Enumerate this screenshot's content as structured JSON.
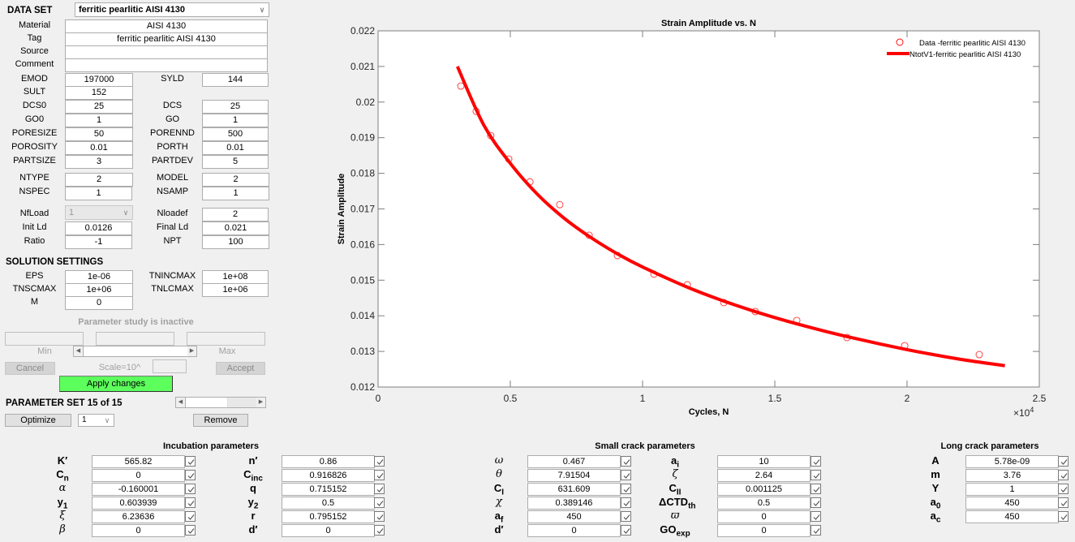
{
  "dataset": {
    "label": "DATA SET",
    "selected": "ferritic pearlitic AISI 4130",
    "material_label": "Material",
    "material": "AISI 4130",
    "tag_label": "Tag",
    "tag": "ferritic pearlitic AISI 4130",
    "source_label": "Source",
    "source": "",
    "comment_label": "Comment",
    "comment": ""
  },
  "props": {
    "EMOD": {
      "label": "EMOD",
      "value": "197000"
    },
    "SYLD": {
      "label": "SYLD",
      "value": "144"
    },
    "SULT": {
      "label": "SULT",
      "value": "152"
    },
    "DCS0": {
      "label": "DCS0",
      "value": "25"
    },
    "DCS": {
      "label": "DCS",
      "value": "25"
    },
    "GO0": {
      "label": "GO0",
      "value": "1"
    },
    "GO": {
      "label": "GO",
      "value": "1"
    },
    "PORESIZE": {
      "label": "PORESIZE",
      "value": "50"
    },
    "PORENND": {
      "label": "PORENND",
      "value": "500"
    },
    "POROSITY": {
      "label": "POROSITY",
      "value": "0.01"
    },
    "PORTH": {
      "label": "PORTH",
      "value": "0.01"
    },
    "PARTSIZE": {
      "label": "PARTSIZE",
      "value": "3"
    },
    "PARTDEV": {
      "label": "PARTDEV",
      "value": "5"
    },
    "NTYPE": {
      "label": "NTYPE",
      "value": "2"
    },
    "MODEL": {
      "label": "MODEL",
      "value": "2"
    },
    "NSPEC": {
      "label": "NSPEC",
      "value": "1"
    },
    "NSAMP": {
      "label": "NSAMP",
      "value": "1"
    },
    "NfLoad": {
      "label": "NfLoad",
      "value": "1"
    },
    "Nloadef": {
      "label": "Nloadef",
      "value": "2"
    },
    "InitLd": {
      "label": "Init Ld",
      "value": "0.0126"
    },
    "FinalLd": {
      "label": "Final Ld",
      "value": "0.021"
    },
    "Ratio": {
      "label": "Ratio",
      "value": "-1"
    },
    "NPT": {
      "label": "NPT",
      "value": "100"
    }
  },
  "solution": {
    "title": "SOLUTION SETTINGS",
    "EPS": {
      "label": "EPS",
      "value": "1e-06"
    },
    "TNINCMAX": {
      "label": "TNINCMAX",
      "value": "1e+08"
    },
    "TNSCMAX": {
      "label": "TNSCMAX",
      "value": "1e+06"
    },
    "TNLCMAX": {
      "label": "TNLCMAX",
      "value": "1e+06"
    },
    "M": {
      "label": "M",
      "value": "0"
    }
  },
  "study": {
    "status": "Parameter study is inactive",
    "min_label": "Min",
    "max_label": "Max",
    "cancel": "Cancel",
    "scale_label": "Scale=10^",
    "accept": "Accept",
    "apply": "Apply changes"
  },
  "paramset": {
    "label": "PARAMETER SET 15 of 15",
    "optimize": "Optimize",
    "select_value": "1",
    "remove": "Remove"
  },
  "incubation": {
    "title": "Incubation parameters",
    "left": [
      {
        "label": "K′",
        "value": "565.82",
        "checked": true
      },
      {
        "label": "C",
        "sub": "n",
        "value": "0",
        "checked": true
      },
      {
        "label": "α",
        "greek": true,
        "value": "-0.160001",
        "checked": true
      },
      {
        "label": "y",
        "sub": "1",
        "value": "0.603939",
        "checked": true
      },
      {
        "label": "ξ",
        "greek": true,
        "value": "6.23636",
        "checked": true
      },
      {
        "label": "β",
        "greek": true,
        "value": "0",
        "checked": true
      }
    ],
    "right": [
      {
        "label": "n′",
        "value": "0.86",
        "checked": true
      },
      {
        "label": "C",
        "sub": "inc",
        "value": "0.916826",
        "checked": true
      },
      {
        "label": "q",
        "value": "0.715152",
        "checked": true
      },
      {
        "label": "y",
        "sub": "2",
        "value": "0.5",
        "checked": true
      },
      {
        "label": "r",
        "value": "0.795152",
        "checked": true
      },
      {
        "label": "d′",
        "value": "0",
        "checked": true
      }
    ]
  },
  "smallcrack": {
    "title": "Small crack parameters",
    "left": [
      {
        "label": "ω",
        "greek": true,
        "value": "0.467",
        "checked": true
      },
      {
        "label": "θ",
        "greek": true,
        "value": "7.91504",
        "checked": true
      },
      {
        "label": "C",
        "sub": "I",
        "value": "631.609",
        "checked": true
      },
      {
        "label": "χ",
        "greek": true,
        "value": "0.389146",
        "checked": true
      },
      {
        "label": "a",
        "sub": "f",
        "value": "450",
        "checked": true
      },
      {
        "label": "d′",
        "value": "0",
        "checked": true
      }
    ],
    "right": [
      {
        "label": "a",
        "sub": "i",
        "value": "10",
        "checked": true
      },
      {
        "label": "ζ",
        "greek": true,
        "value": "2.64",
        "checked": true
      },
      {
        "label": "C",
        "sub": "II",
        "value": "0.001125",
        "checked": true
      },
      {
        "label": "ΔCTD",
        "sub": "th",
        "value": "0.5",
        "checked": true
      },
      {
        "label": "ϖ",
        "greek": true,
        "value": "0",
        "checked": true
      },
      {
        "label": "GO",
        "sub": "exp",
        "value": "0",
        "checked": true
      }
    ]
  },
  "longcrack": {
    "title": "Long crack parameters",
    "items": [
      {
        "label": "A",
        "value": "5.78e-09",
        "checked": true
      },
      {
        "label": "m",
        "value": "3.76",
        "checked": true
      },
      {
        "label": "Y",
        "value": "1",
        "checked": true
      },
      {
        "label": "a",
        "sub": "0",
        "value": "450",
        "checked": true
      },
      {
        "label": "a",
        "sub": "c",
        "value": "450",
        "checked": true
      }
    ]
  },
  "chart_data": {
    "type": "scatter",
    "title": "Strain Amplitude vs. N",
    "xlabel": "Cycles, N",
    "ylabel": "Strain Amplitude",
    "x_multiplier": "×10^4",
    "xlim": [
      0,
      25000
    ],
    "ylim": [
      0.012,
      0.022
    ],
    "xticks": [
      0,
      5000,
      10000,
      15000,
      20000,
      25000
    ],
    "xtick_labels": [
      "0",
      "0.5",
      "1",
      "1.5",
      "2",
      "2.5"
    ],
    "yticks": [
      0.012,
      0.013,
      0.014,
      0.015,
      0.016,
      0.017,
      0.018,
      0.019,
      0.02,
      0.021,
      0.022
    ],
    "ytick_labels": [
      "0.012",
      "0.013",
      "0.014",
      "0.015",
      "0.016",
      "0.017",
      "0.018",
      "0.019",
      "0.02",
      "0.021",
      "0.022"
    ],
    "grid": false,
    "legend_position": "upper right",
    "color": "#ff0000",
    "series": [
      {
        "name": "Data -ferritic pearlitic AISI 4130",
        "kind": "markers",
        "marker": "circle-open",
        "x": [
          3130,
          3710,
          4260,
          4940,
          5740,
          6870,
          7980,
          9050,
          10430,
          11690,
          13070,
          14260,
          15830,
          17730,
          19910,
          22730
        ],
        "y": [
          0.02045,
          0.01974,
          0.01906,
          0.0184,
          0.01776,
          0.01712,
          0.01626,
          0.01569,
          0.01517,
          0.01487,
          0.01437,
          0.01412,
          0.01387,
          0.01339,
          0.01316,
          0.01291
        ]
      },
      {
        "name": "NtotV1-ferritic pearlitic AISI 4130",
        "kind": "line",
        "x": [
          3000,
          4000,
          5000,
          6000,
          7000,
          8000,
          9000,
          10000,
          12000,
          14000,
          16000,
          18000,
          20000,
          22000,
          23700
        ],
        "y": [
          0.021,
          0.01935,
          0.01828,
          0.01743,
          0.01676,
          0.01622,
          0.01576,
          0.01537,
          0.01471,
          0.01418,
          0.01374,
          0.01337,
          0.01305,
          0.01278,
          0.0126
        ]
      }
    ]
  }
}
